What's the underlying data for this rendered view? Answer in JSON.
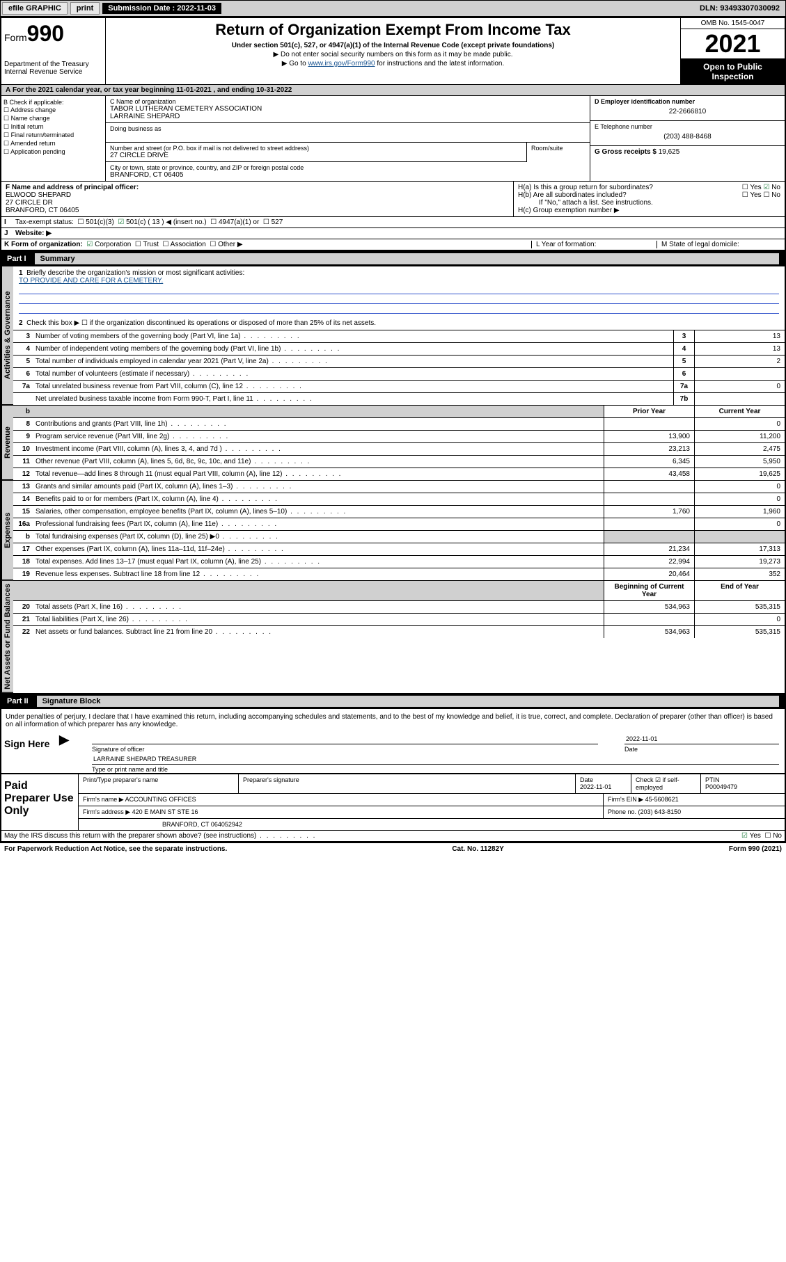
{
  "topbar": {
    "efile": "efile GRAPHIC",
    "print": "print",
    "sub_label": "Submission Date : ",
    "sub_date": "2022-11-03",
    "dln_label": "DLN: ",
    "dln": "93493307030092"
  },
  "header": {
    "form_word": "Form",
    "form_num": "990",
    "dept": "Department of the Treasury",
    "irs": "Internal Revenue Service",
    "title": "Return of Organization Exempt From Income Tax",
    "sub1": "Under section 501(c), 527, or 4947(a)(1) of the Internal Revenue Code (except private foundations)",
    "sub2": "▶ Do not enter social security numbers on this form as it may be made public.",
    "sub3_pre": "▶ Go to ",
    "sub3_link": "www.irs.gov/Form990",
    "sub3_post": " for instructions and the latest information.",
    "omb": "OMB No. 1545-0047",
    "year": "2021",
    "open": "Open to Public Inspection"
  },
  "A": {
    "text": "For the 2021 calendar year, or tax year beginning ",
    "begin": "11-01-2021",
    "mid": " , and ending ",
    "end": "10-31-2022"
  },
  "B": {
    "title": "B Check if applicable:",
    "items": [
      "Address change",
      "Name change",
      "Initial return",
      "Final return/terminated",
      "Amended return",
      "Application pending"
    ]
  },
  "C": {
    "name_lbl": "C Name of organization",
    "name1": "TABOR LUTHERAN CEMETERY ASSOCIATION",
    "name2": "LARRAINE SHEPARD",
    "dba_lbl": "Doing business as",
    "addr_lbl": "Number and street (or P.O. box if mail is not delivered to street address)",
    "room_lbl": "Room/suite",
    "addr": "27 CIRCLE DRIVE",
    "city_lbl": "City or town, state or province, country, and ZIP or foreign postal code",
    "city": "BRANFORD, CT  06405"
  },
  "D": {
    "lbl": "D Employer identification number",
    "val": "22-2666810"
  },
  "E": {
    "lbl": "E Telephone number",
    "val": "(203) 488-8468"
  },
  "G": {
    "lbl": "G Gross receipts $ ",
    "val": "19,625"
  },
  "F": {
    "lbl": "F Name and address of principal officer:",
    "name": "ELWOOD SHEPARD",
    "addr1": "27 CIRCLE DR",
    "addr2": "BRANFORD, CT  06405"
  },
  "H": {
    "a": "H(a)  Is this a group return for subordinates?",
    "b": "H(b)  Are all subordinates included?",
    "b_note": "If \"No,\" attach a list. See instructions.",
    "c": "H(c)  Group exemption number ▶",
    "yes": "Yes",
    "no": "No"
  },
  "I": {
    "lbl": "Tax-exempt status:",
    "opts": [
      "501(c)(3)",
      "501(c) ( 13 ) ◀ (insert no.)",
      "4947(a)(1) or",
      "527"
    ]
  },
  "J": {
    "lbl": "Website: ▶"
  },
  "K": {
    "lbl": "K Form of organization:",
    "opts": [
      "Corporation",
      "Trust",
      "Association",
      "Other ▶"
    ]
  },
  "L": {
    "lbl": "L Year of formation:"
  },
  "M": {
    "lbl": "M State of legal domicile:"
  },
  "parts": {
    "p1": "Part I",
    "p1t": "Summary",
    "p2": "Part II",
    "p2t": "Signature Block"
  },
  "summary": {
    "q1": "Briefly describe the organization's mission or most significant activities:",
    "mission": "TO PROVIDE AND CARE FOR A CEMETERY.",
    "q2": "Check this box ▶ ☐  if the organization discontinued its operations or disposed of more than 25% of its net assets.",
    "rows_top": [
      {
        "n": "3",
        "t": "Number of voting members of the governing body (Part VI, line 1a)",
        "box": "3",
        "v": "13"
      },
      {
        "n": "4",
        "t": "Number of independent voting members of the governing body (Part VI, line 1b)",
        "box": "4",
        "v": "13"
      },
      {
        "n": "5",
        "t": "Total number of individuals employed in calendar year 2021 (Part V, line 2a)",
        "box": "5",
        "v": "2"
      },
      {
        "n": "6",
        "t": "Total number of volunteers (estimate if necessary)",
        "box": "6",
        "v": ""
      },
      {
        "n": "7a",
        "t": "Total unrelated business revenue from Part VIII, column (C), line 12",
        "box": "7a",
        "v": "0"
      },
      {
        "n": "",
        "t": "Net unrelated business taxable income from Form 990-T, Part I, line 11",
        "box": "7b",
        "v": ""
      }
    ],
    "col_prior": "Prior Year",
    "col_current": "Current Year",
    "col_begin": "Beginning of Current Year",
    "col_end": "End of Year",
    "revenue": [
      {
        "n": "8",
        "t": "Contributions and grants (Part VIII, line 1h)",
        "p": "",
        "c": "0"
      },
      {
        "n": "9",
        "t": "Program service revenue (Part VIII, line 2g)",
        "p": "13,900",
        "c": "11,200"
      },
      {
        "n": "10",
        "t": "Investment income (Part VIII, column (A), lines 3, 4, and 7d )",
        "p": "23,213",
        "c": "2,475"
      },
      {
        "n": "11",
        "t": "Other revenue (Part VIII, column (A), lines 5, 6d, 8c, 9c, 10c, and 11e)",
        "p": "6,345",
        "c": "5,950"
      },
      {
        "n": "12",
        "t": "Total revenue—add lines 8 through 11 (must equal Part VIII, column (A), line 12)",
        "p": "43,458",
        "c": "19,625"
      }
    ],
    "expenses": [
      {
        "n": "13",
        "t": "Grants and similar amounts paid (Part IX, column (A), lines 1–3)",
        "p": "",
        "c": "0"
      },
      {
        "n": "14",
        "t": "Benefits paid to or for members (Part IX, column (A), line 4)",
        "p": "",
        "c": "0"
      },
      {
        "n": "15",
        "t": "Salaries, other compensation, employee benefits (Part IX, column (A), lines 5–10)",
        "p": "1,760",
        "c": "1,960"
      },
      {
        "n": "16a",
        "t": "Professional fundraising fees (Part IX, column (A), line 11e)",
        "p": "",
        "c": "0"
      },
      {
        "n": "b",
        "t": "Total fundraising expenses (Part IX, column (D), line 25) ▶0",
        "p": "shade",
        "c": "shade"
      },
      {
        "n": "17",
        "t": "Other expenses (Part IX, column (A), lines 11a–11d, 11f–24e)",
        "p": "21,234",
        "c": "17,313"
      },
      {
        "n": "18",
        "t": "Total expenses. Add lines 13–17 (must equal Part IX, column (A), line 25)",
        "p": "22,994",
        "c": "19,273"
      },
      {
        "n": "19",
        "t": "Revenue less expenses. Subtract line 18 from line 12",
        "p": "20,464",
        "c": "352"
      }
    ],
    "netassets": [
      {
        "n": "20",
        "t": "Total assets (Part X, line 16)",
        "p": "534,963",
        "c": "535,315"
      },
      {
        "n": "21",
        "t": "Total liabilities (Part X, line 26)",
        "p": "",
        "c": "0"
      },
      {
        "n": "22",
        "t": "Net assets or fund balances. Subtract line 21 from line 20",
        "p": "534,963",
        "c": "535,315"
      }
    ]
  },
  "vbars": {
    "gov": "Activities & Governance",
    "rev": "Revenue",
    "exp": "Expenses",
    "net": "Net Assets or Fund Balances"
  },
  "sig": {
    "penalty": "Under penalties of perjury, I declare that I have examined this return, including accompanying schedules and statements, and to the best of my knowledge and belief, it is true, correct, and complete. Declaration of preparer (other than officer) is based on all information of which preparer has any knowledge.",
    "sign_here": "Sign Here",
    "sig_of": "Signature of officer",
    "date": "Date",
    "date_val": "2022-11-01",
    "name_title": "LARRAINE SHEPARD  TREASURER",
    "type_name": "Type or print name and title",
    "paid": "Paid Preparer Use Only",
    "prep_name": "Print/Type preparer's name",
    "prep_sig": "Preparer's signature",
    "prep_date": "2022-11-01",
    "check_if": "Check ☑ if self-employed",
    "ptin_lbl": "PTIN",
    "ptin": "P00049479",
    "firm_name_lbl": "Firm's name    ▶ ",
    "firm_name": "ACCOUNTING OFFICES",
    "firm_ein_lbl": "Firm's EIN ▶ ",
    "firm_ein": "45-5608621",
    "firm_addr_lbl": "Firm's address ▶ ",
    "firm_addr1": "420 E MAIN ST STE 16",
    "firm_addr2": "BRANFORD, CT  064052942",
    "phone_lbl": "Phone no. ",
    "phone": "(203) 643-8150",
    "may_irs": "May the IRS discuss this return with the preparer shown above? (see instructions)"
  },
  "footer": {
    "left": "For Paperwork Reduction Act Notice, see the separate instructions.",
    "mid": "Cat. No. 11282Y",
    "right": "Form 990 (2021)"
  }
}
